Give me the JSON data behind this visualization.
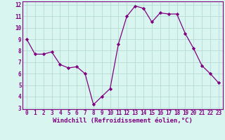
{
  "x": [
    0,
    1,
    2,
    3,
    4,
    5,
    6,
    7,
    8,
    9,
    10,
    11,
    12,
    13,
    14,
    15,
    16,
    17,
    18,
    19,
    20,
    21,
    22,
    23
  ],
  "y": [
    9.0,
    7.7,
    7.7,
    7.9,
    6.8,
    6.5,
    6.6,
    6.0,
    3.3,
    4.0,
    4.7,
    8.6,
    11.0,
    11.9,
    11.7,
    10.5,
    11.3,
    11.2,
    11.2,
    9.5,
    8.2,
    6.7,
    6.0,
    5.2
  ],
  "line_color": "#800080",
  "marker": "D",
  "marker_size": 2.2,
  "bg_color": "#d8f5f0",
  "grid_color": "#b0d4d0",
  "xlabel": "Windchill (Refroidissement éolien,°C)",
  "ylim_min": 2.9,
  "ylim_max": 12.3,
  "xlim_min": -0.5,
  "xlim_max": 23.5,
  "yticks": [
    3,
    4,
    5,
    6,
    7,
    8,
    9,
    10,
    11,
    12
  ],
  "xticks": [
    0,
    1,
    2,
    3,
    4,
    5,
    6,
    7,
    8,
    9,
    10,
    11,
    12,
    13,
    14,
    15,
    16,
    17,
    18,
    19,
    20,
    21,
    22,
    23
  ],
  "tick_fontsize": 5.5,
  "xlabel_fontsize": 6.5,
  "label_color": "#800080",
  "bottom_bar_color": "#800080",
  "bottom_bar_height": 0.12
}
